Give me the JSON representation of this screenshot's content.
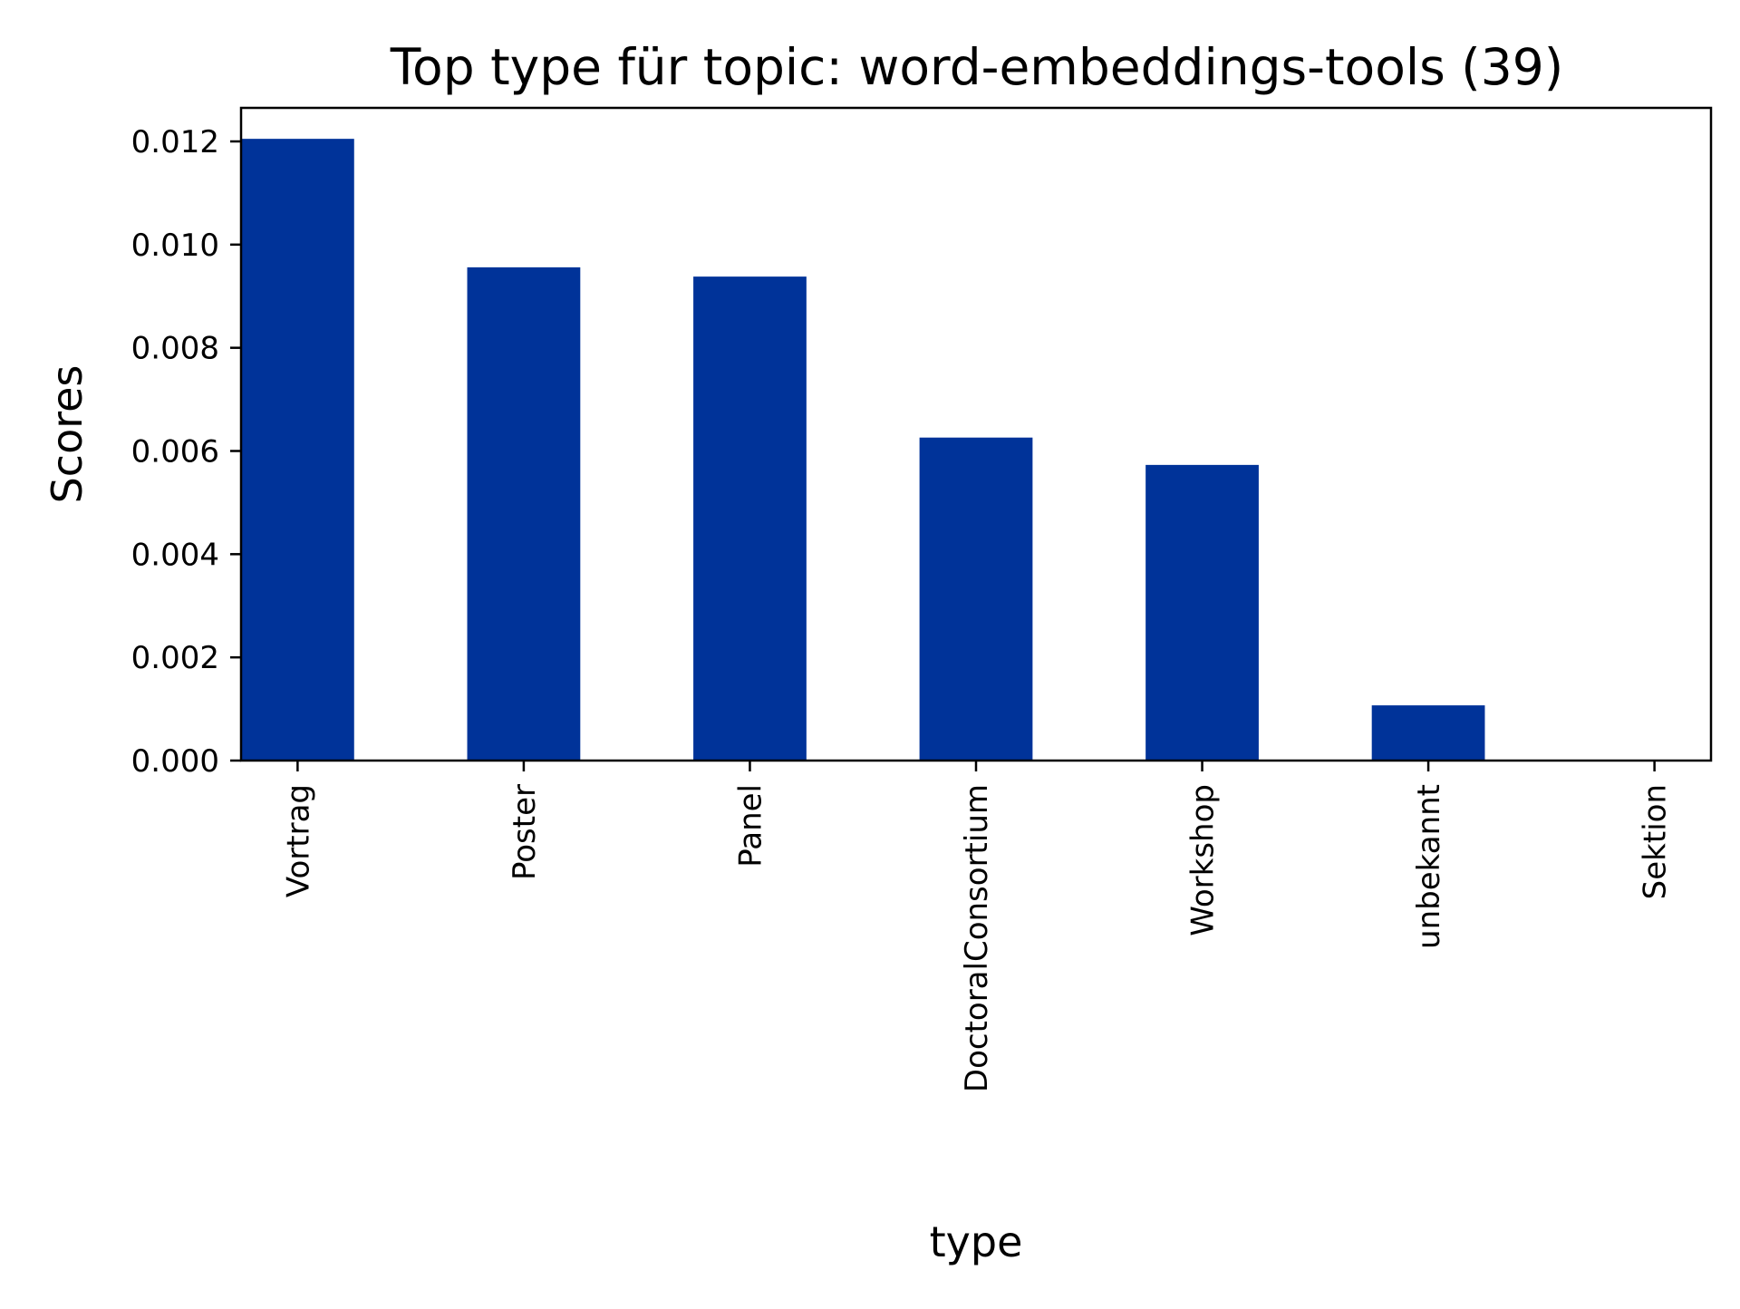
{
  "chart_data": {
    "type": "bar",
    "title": "Top type für topic: word-embeddings-tools (39)",
    "xlabel": "type",
    "ylabel": "Scores",
    "categories": [
      "Vortrag",
      "Poster",
      "Panel",
      "DoctoralConsortium",
      "Workshop",
      "unbekannt",
      "Sektion"
    ],
    "values": [
      0.01205,
      0.00956,
      0.00938,
      0.00626,
      0.00573,
      0.00107,
      0.0
    ],
    "ylim": [
      0,
      0.01265
    ],
    "yticks": [
      "0.000",
      "0.002",
      "0.004",
      "0.006",
      "0.008",
      "0.010",
      "0.012"
    ],
    "ytick_values": [
      0,
      0.002,
      0.004,
      0.006,
      0.008,
      0.01,
      0.012
    ],
    "grid": false,
    "legend": "none",
    "bar_color": "#003399"
  }
}
